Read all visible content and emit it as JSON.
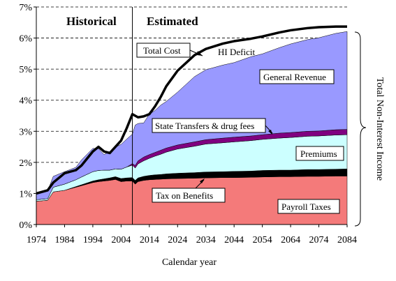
{
  "chart_data": {
    "type": "area",
    "xlabel": "Calendar year",
    "right_label": "Total Non-Interest Income",
    "regions": [
      "Historical",
      "Estimated"
    ],
    "divider_year": 2008,
    "xlim": [
      1974,
      2084
    ],
    "ylim": [
      0,
      7
    ],
    "x_ticks": [
      1974,
      1984,
      1994,
      2004,
      2014,
      2024,
      2034,
      2044,
      2054,
      2064,
      2074,
      2084
    ],
    "y_ticks": [
      0,
      1,
      2,
      3,
      4,
      5,
      6,
      7
    ],
    "y_unit": "%",
    "gridlines": "dashed horizontal",
    "x": [
      1974,
      1978,
      1980,
      1984,
      1988,
      1990,
      1994,
      1996,
      1998,
      2000,
      2002,
      2004,
      2006,
      2008,
      2009,
      2010,
      2012,
      2014,
      2016,
      2018,
      2020,
      2024,
      2030,
      2034,
      2040,
      2044,
      2050,
      2054,
      2060,
      2064,
      2070,
      2074,
      2080,
      2084
    ],
    "series": [
      {
        "name": "Payroll Taxes",
        "color": "#f47a7a",
        "values": [
          0.75,
          0.78,
          1.05,
          1.1,
          1.2,
          1.25,
          1.35,
          1.38,
          1.4,
          1.42,
          1.45,
          1.38,
          1.4,
          1.4,
          1.3,
          1.38,
          1.42,
          1.44,
          1.45,
          1.46,
          1.47,
          1.48,
          1.49,
          1.5,
          1.51,
          1.51,
          1.52,
          1.53,
          1.54,
          1.54,
          1.55,
          1.55,
          1.56,
          1.56
        ]
      },
      {
        "name": "Tax on Benefits",
        "color": "#000000",
        "values": [
          0.0,
          0.0,
          0.0,
          0.0,
          0.02,
          0.03,
          0.05,
          0.06,
          0.07,
          0.08,
          0.09,
          0.1,
          0.1,
          0.11,
          0.12,
          0.12,
          0.13,
          0.14,
          0.15,
          0.15,
          0.16,
          0.17,
          0.18,
          0.19,
          0.19,
          0.2,
          0.2,
          0.21,
          0.21,
          0.21,
          0.22,
          0.22,
          0.22,
          0.23
        ]
      },
      {
        "name": "Premiums",
        "color": "#ccffff",
        "values": [
          0.05,
          0.05,
          0.15,
          0.2,
          0.22,
          0.25,
          0.3,
          0.3,
          0.28,
          0.25,
          0.25,
          0.3,
          0.35,
          0.4,
          0.4,
          0.45,
          0.5,
          0.55,
          0.6,
          0.65,
          0.7,
          0.78,
          0.85,
          0.9,
          0.93,
          0.95,
          0.98,
          1.0,
          1.03,
          1.05,
          1.07,
          1.08,
          1.1,
          1.1
        ]
      },
      {
        "name": "State Transfers & drug fees",
        "color": "#800080",
        "values": [
          0.0,
          0.0,
          0.0,
          0.0,
          0.0,
          0.0,
          0.0,
          0.0,
          0.0,
          0.0,
          0.0,
          0.0,
          0.0,
          0.05,
          0.08,
          0.1,
          0.12,
          0.12,
          0.12,
          0.13,
          0.13,
          0.13,
          0.14,
          0.14,
          0.15,
          0.15,
          0.15,
          0.15,
          0.16,
          0.16,
          0.16,
          0.16,
          0.17,
          0.17
        ]
      },
      {
        "name": "General Revenue",
        "color": "#9999ff",
        "values": [
          0.2,
          0.25,
          0.35,
          0.4,
          0.4,
          0.55,
          0.75,
          0.7,
          0.5,
          0.6,
          0.7,
          0.8,
          0.9,
          0.95,
          1.3,
          1.2,
          1.1,
          1.3,
          1.35,
          1.45,
          1.5,
          1.7,
          2.1,
          2.25,
          2.35,
          2.4,
          2.55,
          2.6,
          2.75,
          2.85,
          2.95,
          3.0,
          3.1,
          3.15
        ]
      }
    ],
    "lines": [
      {
        "name": "Total Cost",
        "color": "#000000",
        "values": [
          1.0,
          1.1,
          1.35,
          1.65,
          1.75,
          1.9,
          2.35,
          2.5,
          2.35,
          2.3,
          2.5,
          2.7,
          3.1,
          3.55,
          3.5,
          3.45,
          3.48,
          3.55,
          3.8,
          4.1,
          4.45,
          4.95,
          5.45,
          5.65,
          5.82,
          5.9,
          5.98,
          6.05,
          6.18,
          6.25,
          6.32,
          6.35,
          6.37,
          6.37
        ]
      }
    ],
    "annotations": [
      "Total Cost",
      "HI Deficit",
      "General Revenue",
      "State Transfers & drug fees",
      "Premiums",
      "Tax on Benefits",
      "Payroll Taxes"
    ]
  }
}
